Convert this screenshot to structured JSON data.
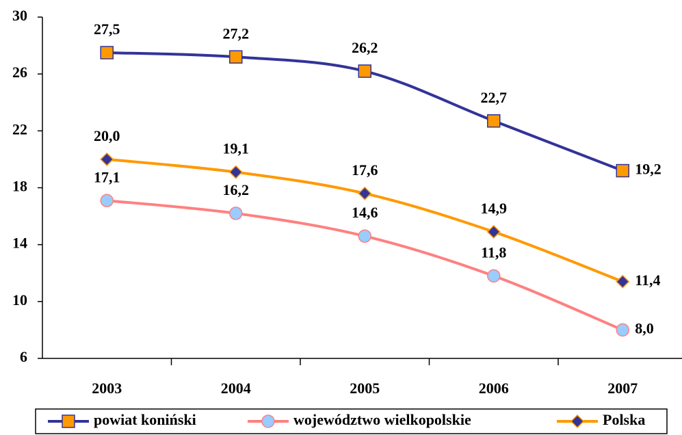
{
  "chart_data": {
    "type": "line",
    "categories": [
      "2003",
      "2004",
      "2005",
      "2006",
      "2007"
    ],
    "series": [
      {
        "name": "powiat koniński",
        "color": "#333399",
        "marker": "square",
        "marker_color": "#ff9900",
        "values": [
          27.5,
          27.2,
          26.2,
          22.7,
          19.2
        ],
        "value_labels": [
          "27,5",
          "27,2",
          "26,2",
          "22,7",
          "19,2"
        ]
      },
      {
        "name": "województwo wielkopolskie",
        "color": "#ff8080",
        "marker": "circle",
        "marker_color": "#99ccff",
        "values": [
          17.1,
          16.2,
          14.6,
          11.8,
          8.0
        ],
        "value_labels": [
          "17,1",
          "16,2",
          "14,6",
          "11,8",
          "8,0"
        ]
      },
      {
        "name": "Polska",
        "color": "#ff9900",
        "marker": "diamond",
        "marker_color": "#333399",
        "values": [
          20.0,
          19.1,
          17.6,
          14.9,
          11.4
        ],
        "value_labels": [
          "20,0",
          "19,1",
          "17,6",
          "14,9",
          "11,4"
        ]
      }
    ],
    "ylim": [
      6,
      30
    ],
    "yticks": [
      6,
      10,
      14,
      18,
      22,
      26,
      30
    ],
    "legend": "bottom",
    "grid": false
  }
}
